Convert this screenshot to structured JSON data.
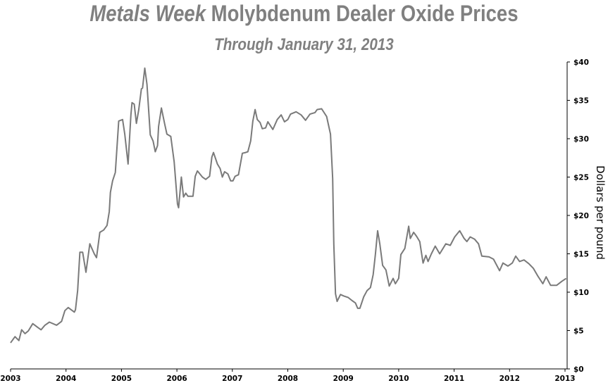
{
  "chart_data": {
    "type": "line",
    "title_italic": "Metals Week",
    "title_rest": " Molybdenum Dealer Oxide Prices",
    "subtitle": "Through January 31, 2013",
    "xlabel": "",
    "ylabel": "Dollars per pound",
    "xlim": [
      2003,
      2013
    ],
    "ylim": [
      0,
      40
    ],
    "x_ticks": [
      "2003",
      "2004",
      "2005",
      "2006",
      "2007",
      "2008",
      "2009",
      "2010",
      "2011",
      "2012",
      "2013"
    ],
    "y_ticks": [
      "$0",
      "$5",
      "$10",
      "$15",
      "$20",
      "$25",
      "$30",
      "$35",
      "$40"
    ],
    "y_axis_side": "right",
    "grid": false,
    "line_color": "#7a7a7a",
    "series": [
      {
        "x": [
          2003.0,
          2003.08,
          2003.15,
          2003.2,
          2003.26,
          2003.32,
          2003.4,
          2003.49,
          2003.55,
          2003.62,
          2003.7,
          2003.83,
          2003.92,
          2003.98,
          2004.04,
          2004.15,
          2004.17,
          2004.21,
          2004.25,
          2004.3,
          2004.36,
          2004.43,
          2004.51,
          2004.55,
          2004.61,
          2004.68,
          2004.74,
          2004.78,
          2004.8,
          2004.84,
          2004.89,
          2004.95,
          2005.02,
          2005.06,
          2005.12,
          2005.17,
          2005.19,
          2005.23,
          2005.27,
          2005.31,
          2005.36,
          2005.38,
          2005.42,
          2005.46,
          2005.52,
          2005.57,
          2005.61,
          2005.65,
          2005.67,
          2005.72,
          2005.78,
          2005.82,
          2005.89,
          2005.95,
          2006.01,
          2006.03,
          2006.08,
          2006.12,
          2006.16,
          2006.2,
          2006.29,
          2006.33,
          2006.37,
          2006.46,
          2006.52,
          2006.59,
          2006.63,
          2006.66,
          2006.73,
          2006.78,
          2006.82,
          2006.86,
          2006.92,
          2006.97,
          2007.01,
          2007.05,
          2007.11,
          2007.18,
          2007.24,
          2007.28,
          2007.33,
          2007.37,
          2007.41,
          2007.45,
          2007.5,
          2007.54,
          2007.6,
          2007.64,
          2007.73,
          2007.81,
          2007.88,
          2007.94,
          2008.0,
          2008.05,
          2008.15,
          2008.24,
          2008.32,
          2008.4,
          2008.49,
          2008.53,
          2008.61,
          2008.7,
          2008.77,
          2008.81,
          2008.83,
          2008.86,
          2008.89,
          2008.95,
          2009.01,
          2009.09,
          2009.16,
          2009.22,
          2009.26,
          2009.3,
          2009.37,
          2009.43,
          2009.49,
          2009.54,
          2009.58,
          2009.62,
          2009.66,
          2009.71,
          2009.77,
          2009.83,
          2009.9,
          2009.94,
          2010.0,
          2010.04,
          2010.11,
          2010.18,
          2010.21,
          2010.27,
          2010.32,
          2010.38,
          2010.44,
          2010.49,
          2010.53,
          2010.59,
          2010.66,
          2010.74,
          2010.85,
          2010.93,
          2011.01,
          2011.1,
          2011.18,
          2011.23,
          2011.29,
          2011.37,
          2011.44,
          2011.5,
          2011.63,
          2011.71,
          2011.82,
          2011.88,
          2011.97,
          2012.05,
          2012.11,
          2012.18,
          2012.26,
          2012.35,
          2012.43,
          2012.51,
          2012.6,
          2012.66,
          2012.74,
          2012.85,
          2012.94,
          2013.02
        ],
        "y": [
          3.4,
          4.2,
          3.7,
          5.1,
          4.6,
          4.95,
          5.9,
          5.4,
          5.1,
          5.7,
          6.1,
          5.7,
          6.2,
          7.6,
          8.0,
          7.4,
          7.7,
          10.2,
          15.2,
          15.2,
          12.6,
          16.3,
          15.0,
          14.5,
          17.8,
          18.1,
          18.7,
          20.5,
          23.0,
          24.5,
          25.6,
          32.3,
          32.5,
          30.6,
          26.7,
          33.1,
          34.7,
          34.5,
          32.0,
          33.7,
          36.5,
          36.6,
          39.2,
          37.1,
          30.5,
          29.7,
          28.3,
          29.1,
          31.6,
          34.0,
          31.9,
          30.6,
          30.3,
          27.0,
          21.5,
          21.0,
          25.0,
          22.4,
          22.9,
          22.5,
          22.5,
          25.1,
          25.8,
          25.0,
          24.7,
          25.1,
          27.6,
          28.2,
          26.7,
          26.1,
          25.0,
          25.7,
          25.4,
          24.5,
          24.5,
          25.1,
          25.3,
          28.1,
          28.2,
          28.3,
          29.7,
          32.3,
          33.8,
          32.5,
          32.1,
          31.3,
          31.4,
          32.2,
          31.2,
          32.5,
          33.1,
          32.2,
          32.5,
          33.2,
          33.5,
          33.1,
          32.4,
          33.2,
          33.4,
          33.8,
          33.9,
          32.9,
          30.6,
          24.8,
          16.3,
          9.8,
          8.8,
          9.7,
          9.5,
          9.3,
          8.9,
          8.6,
          7.9,
          7.9,
          9.4,
          10.2,
          10.6,
          12.3,
          14.9,
          18.0,
          16.3,
          13.5,
          12.9,
          10.8,
          11.8,
          11.1,
          11.8,
          14.9,
          15.7,
          18.6,
          17.0,
          17.8,
          17.3,
          16.6,
          13.8,
          14.8,
          14.0,
          15.0,
          16.0,
          15.0,
          16.3,
          16.1,
          17.2,
          18.0,
          17.0,
          16.6,
          17.2,
          16.9,
          16.3,
          14.7,
          14.6,
          14.3,
          12.8,
          13.8,
          13.4,
          13.8,
          14.7,
          14.0,
          14.2,
          13.7,
          13.1,
          12.1,
          11.1,
          12.0,
          10.9,
          10.9,
          11.4,
          11.8
        ]
      }
    ]
  }
}
